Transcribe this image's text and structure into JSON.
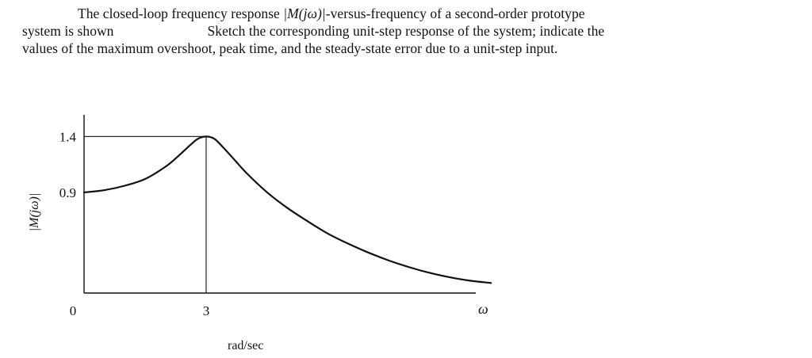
{
  "problem": {
    "line1_a": "The closed-loop frequency response ",
    "line1_math": "|M(jω)|",
    "line1_b": "-versus-frequency of a second-order prototype",
    "line2_a": "system is shown",
    "line2_b": "Sketch the corresponding unit-step response of the system; indicate the",
    "line3": "values of the maximum overshoot, peak time, and the steady-state error due to a unit-step input."
  },
  "chart_data": {
    "type": "line",
    "title": "",
    "xlabel": "ω",
    "xunit_label": "rad/sec",
    "ylabel": "|M(jω)|",
    "x_tick_labels": [
      "0",
      "3"
    ],
    "y_tick_labels": [
      "1.4",
      "0.9"
    ],
    "xlim": [
      0,
      10.6
    ],
    "ylim": [
      0,
      1.7
    ],
    "grid": false,
    "legend": "none",
    "reference_lines": [
      {
        "kind": "horizontal",
        "y": 1.4,
        "x_to": 3
      },
      {
        "kind": "vertical",
        "x": 3,
        "y_to": 1.4
      }
    ],
    "series": [
      {
        "x": [
          0,
          0.5,
          1.0,
          1.5,
          2.0,
          2.3,
          2.6,
          2.8,
          3.0,
          3.2,
          3.4,
          3.7,
          4.0,
          4.5,
          5.0,
          5.5,
          6.0,
          6.5,
          7.0,
          7.5,
          8.0,
          8.5,
          9.0,
          9.5,
          10.0
        ],
        "y": [
          0.9,
          0.92,
          0.96,
          1.02,
          1.13,
          1.22,
          1.32,
          1.38,
          1.4,
          1.38,
          1.31,
          1.19,
          1.07,
          0.9,
          0.76,
          0.64,
          0.53,
          0.44,
          0.36,
          0.29,
          0.23,
          0.18,
          0.14,
          0.11,
          0.09
        ]
      }
    ]
  }
}
